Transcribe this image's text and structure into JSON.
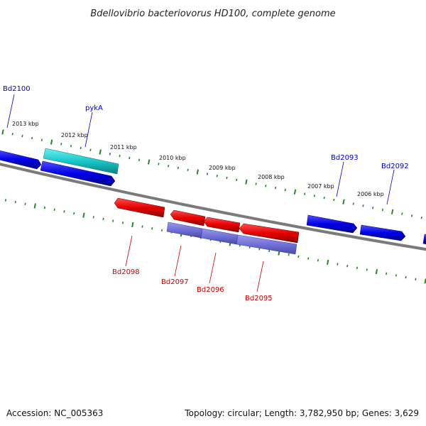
{
  "title": "Bdellovibrio bacteriovorus HD100, complete genome",
  "footer": {
    "accession": "Accession: NC_005363",
    "summary": "Topology: circular; Length: 3,782,950 bp; Genes: 3,629"
  },
  "colors": {
    "forward_gene": "#0000e6",
    "reverse_gene": "#e60000",
    "rna": "#19c8c8",
    "orf_reverse": "#7070d8",
    "backbone": "#808080",
    "ticks": "#1e8c1e",
    "forward_label": "#0000cc",
    "reverse_label": "#cc0000"
  },
  "ticks": [
    {
      "label": "2013 kbp"
    },
    {
      "label": "2012 kbp"
    },
    {
      "label": "2011 kbp"
    },
    {
      "label": "2010 kbp"
    },
    {
      "label": "2009 kbp"
    },
    {
      "label": "2008 kbp"
    },
    {
      "label": "2007 kbp"
    },
    {
      "label": "2006 kbp"
    }
  ],
  "gene_labels": [
    {
      "name": "Bd2100",
      "strand": "forward"
    },
    {
      "name": "pykA",
      "strand": "forward"
    },
    {
      "name": "Bd2093",
      "strand": "forward"
    },
    {
      "name": "Bd2092",
      "strand": "forward"
    },
    {
      "name": "Bd2098",
      "strand": "reverse"
    },
    {
      "name": "Bd2097",
      "strand": "reverse"
    },
    {
      "name": "Bd2096",
      "strand": "reverse"
    },
    {
      "name": "Bd2095",
      "strand": "reverse"
    }
  ]
}
